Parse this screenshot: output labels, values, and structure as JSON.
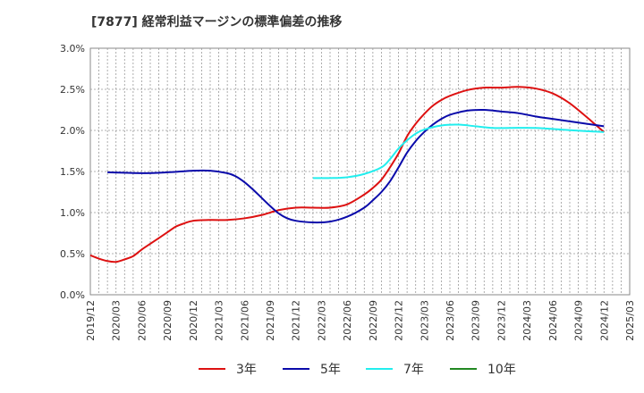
{
  "chart_data": {
    "type": "line",
    "title": "[7877]  経常利益マージンの標準偏差の推移",
    "xlabel": "",
    "ylabel": "",
    "ylim": [
      0.0,
      3.0
    ],
    "y_ticks": [
      "0.0%",
      "0.5%",
      "1.0%",
      "1.5%",
      "2.0%",
      "2.5%",
      "3.0%"
    ],
    "x_ticks": [
      "2019/12",
      "2020/03",
      "2020/06",
      "2020/09",
      "2020/12",
      "2021/03",
      "2021/06",
      "2021/09",
      "2021/12",
      "2022/03",
      "2022/06",
      "2022/09",
      "2022/12",
      "2023/03",
      "2023/06",
      "2023/09",
      "2023/12",
      "2024/03",
      "2024/06",
      "2024/09",
      "2024/12",
      "2025/03"
    ],
    "grid": true,
    "legend_position": "bottom",
    "series": [
      {
        "name": "3年",
        "color": "#dd1111",
        "points": [
          [
            "2019/12",
            0.48
          ],
          [
            "2020/01",
            0.44
          ],
          [
            "2020/02",
            0.41
          ],
          [
            "2020/03",
            0.4
          ],
          [
            "2020/04",
            0.43
          ],
          [
            "2020/05",
            0.47
          ],
          [
            "2020/06",
            0.55
          ],
          [
            "2020/07",
            0.62
          ],
          [
            "2020/08",
            0.69
          ],
          [
            "2020/09",
            0.76
          ],
          [
            "2020/10",
            0.83
          ],
          [
            "2020/11",
            0.87
          ],
          [
            "2020/12",
            0.9
          ],
          [
            "2021/02",
            0.91
          ],
          [
            "2021/04",
            0.91
          ],
          [
            "2021/06",
            0.93
          ],
          [
            "2021/08",
            0.97
          ],
          [
            "2021/10",
            1.03
          ],
          [
            "2021/12",
            1.06
          ],
          [
            "2022/02",
            1.06
          ],
          [
            "2022/04",
            1.06
          ],
          [
            "2022/06",
            1.1
          ],
          [
            "2022/08",
            1.22
          ],
          [
            "2022/09",
            1.3
          ],
          [
            "2022/10",
            1.4
          ],
          [
            "2022/11",
            1.55
          ],
          [
            "2022/12",
            1.72
          ],
          [
            "2023/01",
            1.93
          ],
          [
            "2023/02",
            2.08
          ],
          [
            "2023/03",
            2.2
          ],
          [
            "2023/04",
            2.3
          ],
          [
            "2023/05",
            2.37
          ],
          [
            "2023/06",
            2.42
          ],
          [
            "2023/08",
            2.49
          ],
          [
            "2023/10",
            2.52
          ],
          [
            "2023/12",
            2.52
          ],
          [
            "2024/02",
            2.53
          ],
          [
            "2024/04",
            2.51
          ],
          [
            "2024/06",
            2.45
          ],
          [
            "2024/08",
            2.33
          ],
          [
            "2024/10",
            2.16
          ],
          [
            "2024/11",
            2.07
          ],
          [
            "2024/12",
            1.98
          ]
        ]
      },
      {
        "name": "5年",
        "color": "#0a0aaa",
        "points": [
          [
            "2020/02",
            1.49
          ],
          [
            "2020/06",
            1.48
          ],
          [
            "2020/09",
            1.49
          ],
          [
            "2020/12",
            1.51
          ],
          [
            "2021/02",
            1.51
          ],
          [
            "2021/04",
            1.48
          ],
          [
            "2021/05",
            1.44
          ],
          [
            "2021/06",
            1.37
          ],
          [
            "2021/07",
            1.28
          ],
          [
            "2021/08",
            1.18
          ],
          [
            "2021/09",
            1.08
          ],
          [
            "2021/10",
            0.99
          ],
          [
            "2021/11",
            0.93
          ],
          [
            "2021/12",
            0.9
          ],
          [
            "2022/02",
            0.88
          ],
          [
            "2022/04",
            0.89
          ],
          [
            "2022/06",
            0.95
          ],
          [
            "2022/08",
            1.06
          ],
          [
            "2022/09",
            1.15
          ],
          [
            "2022/10",
            1.25
          ],
          [
            "2022/11",
            1.38
          ],
          [
            "2022/12",
            1.55
          ],
          [
            "2023/01",
            1.73
          ],
          [
            "2023/02",
            1.87
          ],
          [
            "2023/03",
            1.98
          ],
          [
            "2023/04",
            2.07
          ],
          [
            "2023/05",
            2.14
          ],
          [
            "2023/06",
            2.19
          ],
          [
            "2023/08",
            2.24
          ],
          [
            "2023/10",
            2.25
          ],
          [
            "2023/12",
            2.23
          ],
          [
            "2024/02",
            2.21
          ],
          [
            "2024/04",
            2.17
          ],
          [
            "2024/06",
            2.14
          ],
          [
            "2024/08",
            2.11
          ],
          [
            "2024/10",
            2.08
          ],
          [
            "2024/12",
            2.05
          ]
        ]
      },
      {
        "name": "7年",
        "color": "#22eeee",
        "points": [
          [
            "2022/02",
            1.42
          ],
          [
            "2022/04",
            1.42
          ],
          [
            "2022/06",
            1.43
          ],
          [
            "2022/08",
            1.47
          ],
          [
            "2022/10",
            1.55
          ],
          [
            "2022/11",
            1.65
          ],
          [
            "2022/12",
            1.78
          ],
          [
            "2023/01",
            1.88
          ],
          [
            "2023/02",
            1.96
          ],
          [
            "2023/03",
            2.01
          ],
          [
            "2023/05",
            2.06
          ],
          [
            "2023/07",
            2.07
          ],
          [
            "2023/09",
            2.05
          ],
          [
            "2023/11",
            2.03
          ],
          [
            "2024/01",
            2.03
          ],
          [
            "2024/04",
            2.03
          ],
          [
            "2024/07",
            2.01
          ],
          [
            "2024/10",
            1.99
          ],
          [
            "2024/12",
            1.98
          ]
        ]
      },
      {
        "name": "10年",
        "color": "#228822",
        "points": []
      }
    ]
  }
}
